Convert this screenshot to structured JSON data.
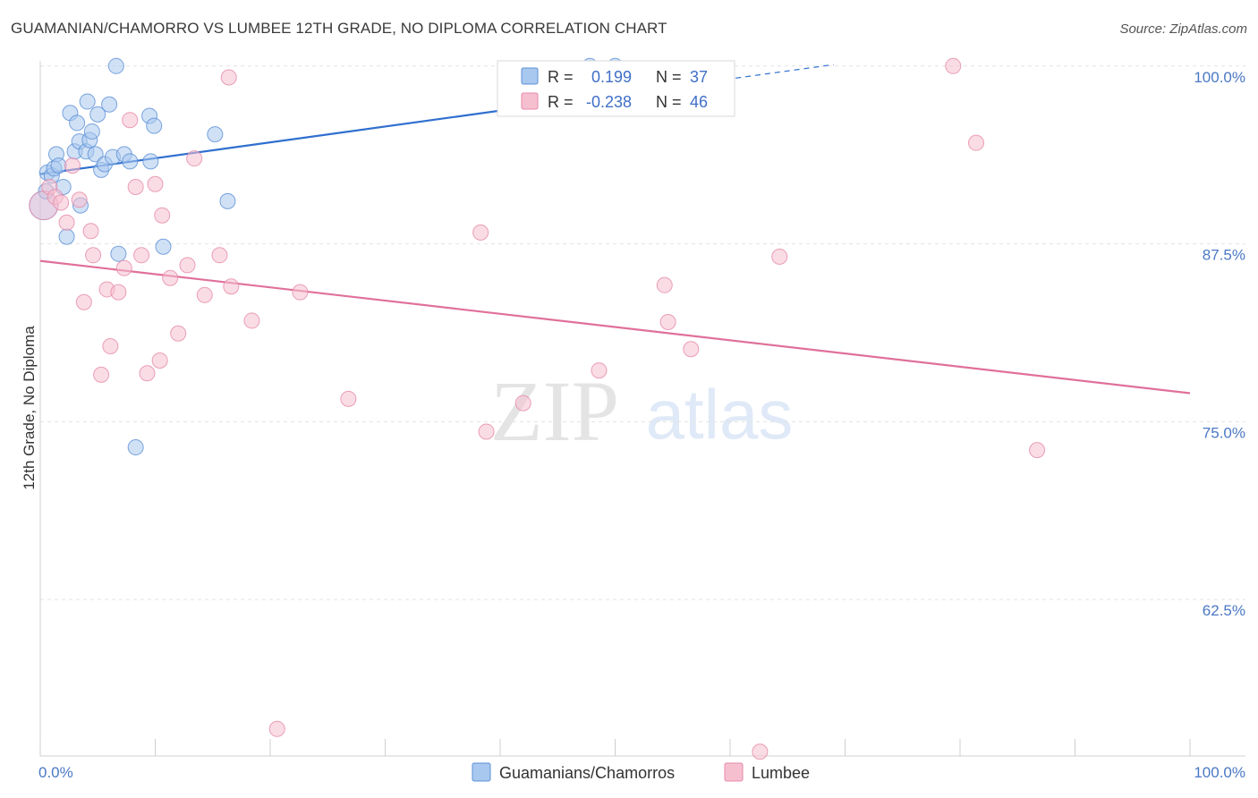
{
  "header": {
    "title": "GUAMANIAN/CHAMORRO VS LUMBEE 12TH GRADE, NO DIPLOMA CORRELATION CHART",
    "source": "Source: ZipAtlas.com"
  },
  "watermark": {
    "zip": "ZIP",
    "atlas": "atlas"
  },
  "colors": {
    "blue_fill": "#a9c8ef",
    "blue_stroke": "#5a8fd6",
    "blue_line": "#2f6fcf",
    "pink_fill": "#f6bfd0",
    "pink_stroke": "#e58aa8",
    "pink_line": "#e0709a",
    "grid": "#e3e3e3",
    "tick_text": "#4a78c4"
  },
  "legend": {
    "rows": [
      {
        "r_label": "R =",
        "r_value": "0.199",
        "n_label": "N =",
        "n_value": "37"
      },
      {
        "r_label": "R =",
        "r_value": "-0.238",
        "n_label": "N =",
        "n_value": "46"
      }
    ]
  },
  "chart_data": {
    "type": "scatter",
    "title": "GUAMANIAN/CHAMORRO VS LUMBEE 12TH GRADE, NO DIPLOMA CORRELATION CHART",
    "xlabel": "",
    "ylabel": "12th Grade, No Diploma",
    "xlim": [
      0,
      100
    ],
    "ylim": [
      51.5,
      102
    ],
    "x_tick_labels": [
      "0.0%",
      "100.0%"
    ],
    "y_ticks": [
      62.5,
      75.0,
      87.5,
      100.0
    ],
    "y_tick_labels": [
      "62.5%",
      "75.0%",
      "87.5%",
      "100.0%"
    ],
    "grid": true,
    "legend_position": "top-center",
    "series": [
      {
        "name": "Guamanians/Chamorros",
        "color": "#a9c8ef",
        "points": [
          [
            0.3,
            90.2
          ],
          [
            0.5,
            91.2
          ],
          [
            0.6,
            92.5
          ],
          [
            1.0,
            92.3
          ],
          [
            1.2,
            92.8
          ],
          [
            1.4,
            93.8
          ],
          [
            1.6,
            93.0
          ],
          [
            2.0,
            91.5
          ],
          [
            2.3,
            88.0
          ],
          [
            2.6,
            96.7
          ],
          [
            3.0,
            94.0
          ],
          [
            3.2,
            96.0
          ],
          [
            3.4,
            94.7
          ],
          [
            3.5,
            90.2
          ],
          [
            4.0,
            94.0
          ],
          [
            4.1,
            97.5
          ],
          [
            4.3,
            94.8
          ],
          [
            4.5,
            95.4
          ],
          [
            4.8,
            93.8
          ],
          [
            5.0,
            96.6
          ],
          [
            5.3,
            92.7
          ],
          [
            5.6,
            93.1
          ],
          [
            6.0,
            97.3
          ],
          [
            6.3,
            93.6
          ],
          [
            6.6,
            100.0
          ],
          [
            6.8,
            86.8
          ],
          [
            7.3,
            93.8
          ],
          [
            7.8,
            93.3
          ],
          [
            8.3,
            73.2
          ],
          [
            9.5,
            96.5
          ],
          [
            9.6,
            93.3
          ],
          [
            9.9,
            95.8
          ],
          [
            10.7,
            87.3
          ],
          [
            15.2,
            95.2
          ],
          [
            16.3,
            90.5
          ],
          [
            47.8,
            100.0
          ],
          [
            50.0,
            100.0
          ]
        ],
        "trend": {
          "x_start": 0,
          "y_start": 92.4,
          "x_solid_end": 52,
          "x_end": 69,
          "y_end": 100.1
        }
      },
      {
        "name": "Lumbee",
        "color": "#f6bfd0",
        "points": [
          [
            0.3,
            90.2
          ],
          [
            0.8,
            91.5
          ],
          [
            1.3,
            90.8
          ],
          [
            1.8,
            90.4
          ],
          [
            2.3,
            89.0
          ],
          [
            2.8,
            93.0
          ],
          [
            3.4,
            90.6
          ],
          [
            3.8,
            83.4
          ],
          [
            4.4,
            88.4
          ],
          [
            4.6,
            86.7
          ],
          [
            5.3,
            78.3
          ],
          [
            5.8,
            84.3
          ],
          [
            6.1,
            80.3
          ],
          [
            6.8,
            84.1
          ],
          [
            7.3,
            85.8
          ],
          [
            7.8,
            96.2
          ],
          [
            8.3,
            91.5
          ],
          [
            8.8,
            86.7
          ],
          [
            9.3,
            78.4
          ],
          [
            10.0,
            91.7
          ],
          [
            10.4,
            79.3
          ],
          [
            10.6,
            89.5
          ],
          [
            11.3,
            85.1
          ],
          [
            12.0,
            81.2
          ],
          [
            12.8,
            86.0
          ],
          [
            13.4,
            93.5
          ],
          [
            14.3,
            83.9
          ],
          [
            15.6,
            86.7
          ],
          [
            16.4,
            99.2
          ],
          [
            16.6,
            84.5
          ],
          [
            18.4,
            82.1
          ],
          [
            20.6,
            53.4
          ],
          [
            22.6,
            84.1
          ],
          [
            26.8,
            76.6
          ],
          [
            38.3,
            88.3
          ],
          [
            38.8,
            74.3
          ],
          [
            42.0,
            76.3
          ],
          [
            48.6,
            78.6
          ],
          [
            54.3,
            84.6
          ],
          [
            54.6,
            82.0
          ],
          [
            56.6,
            80.1
          ],
          [
            62.6,
            51.8
          ],
          [
            64.3,
            86.6
          ],
          [
            79.4,
            100.0
          ],
          [
            81.4,
            94.6
          ],
          [
            86.7,
            73.0
          ]
        ],
        "trend": {
          "x_start": 0,
          "y_start": 86.3,
          "x_end": 100,
          "y_end": 77.0
        }
      }
    ]
  },
  "bottom_legend": {
    "items": [
      {
        "label": "Guamanians/Chamorros"
      },
      {
        "label": "Lumbee"
      }
    ]
  }
}
